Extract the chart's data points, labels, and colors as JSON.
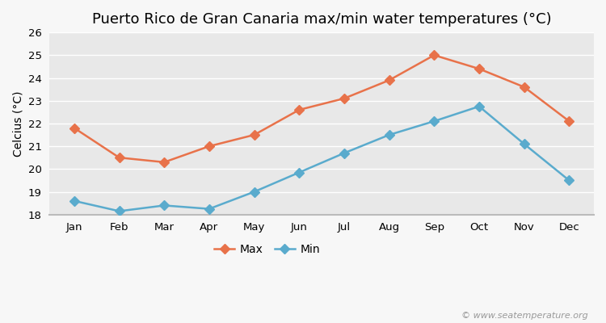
{
  "title": "Puerto Rico de Gran Canaria max/min water temperatures (°C)",
  "xlabel": "",
  "ylabel": "Celcius (°C)",
  "months": [
    "Jan",
    "Feb",
    "Mar",
    "Apr",
    "May",
    "Jun",
    "Jul",
    "Aug",
    "Sep",
    "Oct",
    "Nov",
    "Dec"
  ],
  "max_temps": [
    21.8,
    20.5,
    20.3,
    21.0,
    21.5,
    22.6,
    23.1,
    23.9,
    25.0,
    24.4,
    23.6,
    22.1
  ],
  "min_temps": [
    18.6,
    18.15,
    18.4,
    18.25,
    19.0,
    19.85,
    20.7,
    21.5,
    22.1,
    22.75,
    21.1,
    19.5
  ],
  "max_color": "#e8724a",
  "min_color": "#5aabcd",
  "outer_bg_color": "#f7f7f7",
  "plot_bg_color": "#e8e8e8",
  "grid_color": "#ffffff",
  "bottom_bg_color": "#f7f7f7",
  "ylim": [
    18,
    26
  ],
  "yticks": [
    18,
    19,
    20,
    21,
    22,
    23,
    24,
    25,
    26
  ],
  "marker": "D",
  "markersize": 6,
  "linewidth": 1.8,
  "legend_labels": [
    "Max",
    "Min"
  ],
  "watermark": "© www.seatemperature.org",
  "title_fontsize": 13,
  "axis_label_fontsize": 10,
  "tick_fontsize": 9.5,
  "legend_fontsize": 10
}
